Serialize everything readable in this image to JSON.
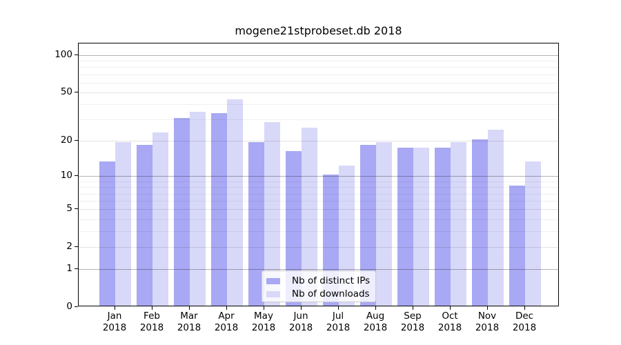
{
  "title": "mogene21stprobeset.db 2018",
  "chart_data": {
    "type": "bar",
    "title": "mogene21stprobeset.db 2018",
    "categories": [
      "Jan 2018",
      "Feb 2018",
      "Mar 2018",
      "Apr 2018",
      "May 2018",
      "Jun 2018",
      "Jul 2018",
      "Aug 2018",
      "Sep 2018",
      "Oct 2018",
      "Nov 2018",
      "Dec 2018"
    ],
    "series": [
      {
        "name": "Nb of distinct IPs",
        "color": "#a8a8f4",
        "values": [
          13,
          18,
          30,
          33,
          19,
          16,
          10,
          18,
          17,
          17,
          20,
          8
        ]
      },
      {
        "name": "Nb of downloads",
        "color": "#d8d8f8",
        "values": [
          19,
          23,
          34,
          43,
          28,
          25,
          12,
          19,
          17,
          19,
          24,
          13
        ]
      }
    ],
    "xlabel": "",
    "ylabel": "",
    "yscale": "log1p",
    "y_ticks": [
      0,
      1,
      2,
      5,
      10,
      20,
      50,
      100
    ],
    "y_minor_ticks": [
      3,
      4,
      6,
      7,
      8,
      9,
      30,
      40,
      60,
      70,
      80,
      90
    ],
    "y_decade_lines": [
      1,
      10,
      100
    ],
    "ylim": [
      0,
      124
    ],
    "grid": true,
    "legend_position": "lower center"
  }
}
